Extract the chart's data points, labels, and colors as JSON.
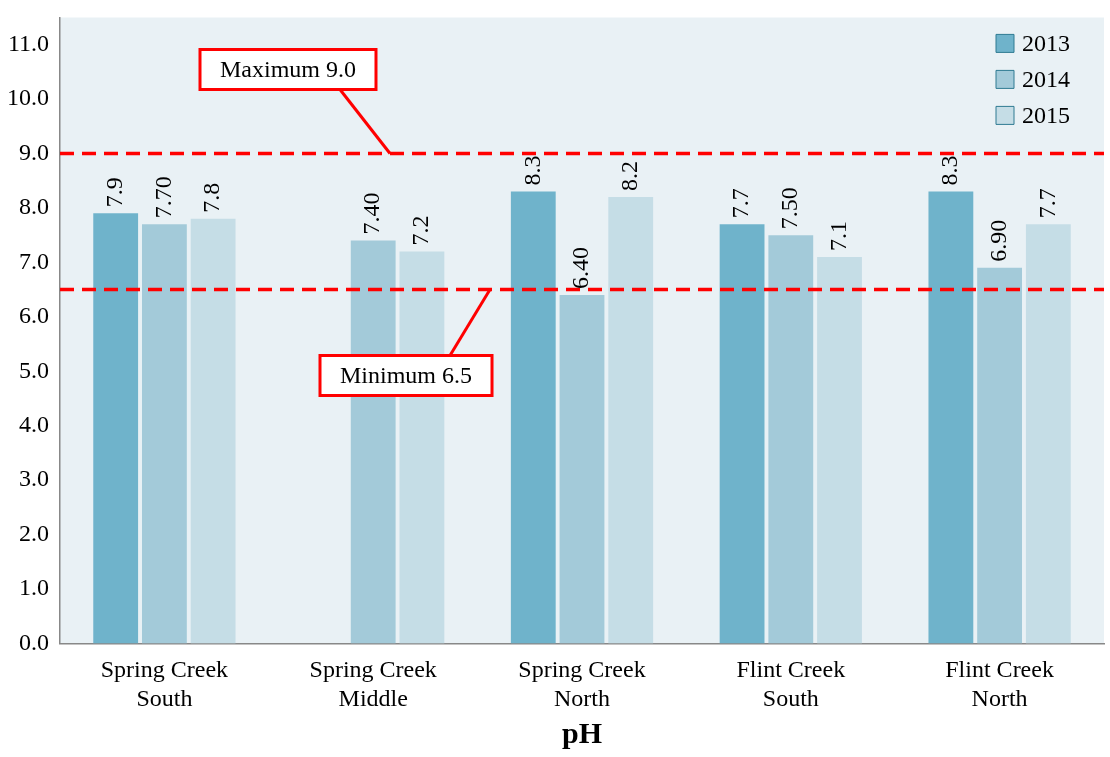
{
  "chart_data": {
    "type": "bar",
    "xlabel": "pH",
    "categories": [
      "Spring Creek South",
      "Spring Creek Middle",
      "Spring Creek North",
      "Flint Creek South",
      "Flint Creek North"
    ],
    "series": [
      {
        "name": "2013",
        "color": "#6fb3cb",
        "values": [
          7.9,
          null,
          8.3,
          7.7,
          8.3
        ],
        "value_labels": [
          "7.9",
          null,
          "8.3",
          "7.7",
          "8.3"
        ]
      },
      {
        "name": "2014",
        "color": "#a3cad9",
        "values": [
          7.7,
          7.4,
          6.4,
          7.5,
          6.9
        ],
        "value_labels": [
          "7.70",
          "7.40",
          "6.40",
          "7.50",
          "6.90"
        ]
      },
      {
        "name": "2015",
        "color": "#c5dde6",
        "values": [
          7.8,
          7.2,
          8.2,
          7.1,
          7.7
        ],
        "value_labels": [
          "7.8",
          "7.2",
          "8.2",
          "7.1",
          "7.7"
        ]
      }
    ],
    "ylim": [
      0,
      11.5
    ],
    "yticks": [
      {
        "value": 0,
        "label": "0.0"
      },
      {
        "value": 1,
        "label": "1.0"
      },
      {
        "value": 2,
        "label": "2.0"
      },
      {
        "value": 3,
        "label": "3.0"
      },
      {
        "value": 4,
        "label": "4.0"
      },
      {
        "value": 5,
        "label": "5.0"
      },
      {
        "value": 6,
        "label": "6.0"
      },
      {
        "value": 7,
        "label": "7.0"
      },
      {
        "value": 8,
        "label": "8.0"
      },
      {
        "value": 9,
        "label": "9.0"
      },
      {
        "value": 10,
        "label": "10.0"
      },
      {
        "value": 11,
        "label": "11.0"
      }
    ],
    "ref_lines": [
      {
        "axis": "y",
        "value": 9,
        "label": "Maximum 9.0",
        "color": "#ff0000",
        "line_style": "dashed"
      },
      {
        "axis": "y",
        "value": 6.5,
        "label": "Minimum 6.5",
        "color": "#ff0000",
        "line_style": "dashed"
      }
    ],
    "grid": false,
    "legend": "top right"
  }
}
